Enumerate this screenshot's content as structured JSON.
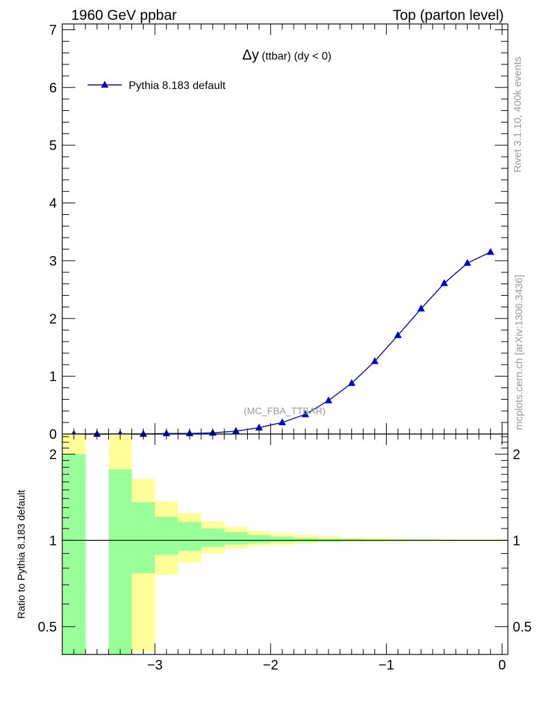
{
  "header": {
    "left": "1960 GeV ppbar",
    "right": "Top (parton level)"
  },
  "side": {
    "rivet": "Rivet 3.1.10,  400k events",
    "mcplots": "mcplots.cern.ch [arXiv:1306.3436]"
  },
  "chart_data": [
    {
      "type": "line",
      "title": "Δy (ttbar) (dy < 0)",
      "title_main": "Δy",
      "title_sub": "(ttbar) (dy < 0)",
      "watermark": "(MC_FBA_TTBAR)",
      "xlim": [
        -3.8,
        0.05
      ],
      "ylim": [
        0,
        7.1
      ],
      "grid": false,
      "legend_position": "top-left",
      "yticks": [
        {
          "v": 0,
          "label": "0"
        },
        {
          "v": 1,
          "label": "1"
        },
        {
          "v": 2,
          "label": "2"
        },
        {
          "v": 3,
          "label": "3"
        },
        {
          "v": 4,
          "label": "4"
        },
        {
          "v": 5,
          "label": "5"
        },
        {
          "v": 6,
          "label": "6"
        },
        {
          "v": 7,
          "label": "7"
        }
      ],
      "series": [
        {
          "name": "Pythia 8.183 default",
          "color": "#0000cc",
          "marker": "triangle",
          "x": [
            -3.7,
            -3.5,
            -3.3,
            -3.1,
            -2.9,
            -2.7,
            -2.5,
            -2.3,
            -2.1,
            -1.9,
            -1.7,
            -1.5,
            -1.3,
            -1.1,
            -0.9,
            -0.7,
            -0.5,
            -0.3,
            -0.1
          ],
          "y": [
            0.0,
            0.0,
            0.0,
            0.0,
            0.01,
            0.01,
            0.02,
            0.05,
            0.11,
            0.2,
            0.34,
            0.58,
            0.88,
            1.26,
            1.71,
            2.17,
            2.61,
            2.96,
            3.15
          ]
        }
      ]
    },
    {
      "type": "area",
      "ylabel": "Ratio to Pythia 8.183 default",
      "xlim": [
        -3.8,
        0.05
      ],
      "ylim": [
        0.4,
        2.35
      ],
      "log_y": true,
      "reference_line": 1,
      "yticks": [
        {
          "v": 0.5,
          "label": "0.5"
        },
        {
          "v": 1,
          "label": "1"
        },
        {
          "v": 2,
          "label": "2"
        }
      ],
      "xticks": [
        {
          "v": -3,
          "label": "−3"
        },
        {
          "v": -2,
          "label": "−2"
        },
        {
          "v": -1,
          "label": "−1"
        },
        {
          "v": 0,
          "label": "0"
        }
      ],
      "bands": {
        "inner_color": "#99ff99",
        "outer_color": "#ffff99",
        "bins": [
          {
            "xlo": -3.8,
            "xhi": -3.6,
            "inner": [
              0.3,
              2.0
            ],
            "outer": [
              0.3,
              2.4
            ]
          },
          {
            "xlo": -3.4,
            "xhi": -3.2,
            "inner": [
              0.3,
              1.77
            ],
            "outer": [
              0.3,
              2.4
            ]
          },
          {
            "xlo": -3.2,
            "xhi": -3.0,
            "inner": [
              0.77,
              1.36
            ],
            "outer": [
              0.41,
              1.64
            ]
          },
          {
            "xlo": -3.0,
            "xhi": -2.8,
            "inner": [
              0.89,
              1.21
            ],
            "outer": [
              0.76,
              1.37
            ]
          },
          {
            "xlo": -2.8,
            "xhi": -2.6,
            "inner": [
              0.92,
              1.16
            ],
            "outer": [
              0.84,
              1.25
            ]
          },
          {
            "xlo": -2.6,
            "xhi": -2.4,
            "inner": [
              0.95,
              1.1
            ],
            "outer": [
              0.9,
              1.17
            ]
          },
          {
            "xlo": -2.4,
            "xhi": -2.2,
            "inner": [
              0.97,
              1.07
            ],
            "outer": [
              0.94,
              1.12
            ]
          },
          {
            "xlo": -2.2,
            "xhi": -2.0,
            "inner": [
              0.98,
              1.045
            ],
            "outer": [
              0.96,
              1.08
            ]
          },
          {
            "xlo": -2.0,
            "xhi": -1.8,
            "inner": [
              0.985,
              1.03
            ],
            "outer": [
              0.97,
              1.06
            ]
          },
          {
            "xlo": -1.8,
            "xhi": -1.6,
            "inner": [
              0.99,
              1.02
            ],
            "outer": [
              0.98,
              1.045
            ]
          },
          {
            "xlo": -1.6,
            "xhi": -1.4,
            "inner": [
              0.992,
              1.015
            ],
            "outer": [
              0.985,
              1.035
            ]
          },
          {
            "xlo": -1.4,
            "xhi": -1.2,
            "inner": [
              0.994,
              1.012
            ],
            "outer": [
              0.99,
              1.025
            ]
          },
          {
            "xlo": -1.2,
            "xhi": -1.0,
            "inner": [
              0.995,
              1.01
            ],
            "outer": [
              0.992,
              1.02
            ]
          },
          {
            "xlo": -1.0,
            "xhi": -0.8,
            "inner": [
              0.996,
              1.008
            ],
            "outer": [
              0.993,
              1.016
            ]
          },
          {
            "xlo": -0.8,
            "xhi": -0.6,
            "inner": [
              0.997,
              1.006
            ],
            "outer": [
              0.994,
              1.013
            ]
          },
          {
            "xlo": -0.6,
            "xhi": -0.4,
            "inner": [
              0.997,
              1.005
            ],
            "outer": [
              0.995,
              1.011
            ]
          },
          {
            "xlo": -0.4,
            "xhi": -0.2,
            "inner": [
              0.998,
              1.004
            ],
            "outer": [
              0.996,
              1.009
            ]
          },
          {
            "xlo": -0.2,
            "xhi": 0.0,
            "inner": [
              0.998,
              1.004
            ],
            "outer": [
              0.996,
              1.008
            ]
          }
        ]
      }
    }
  ]
}
